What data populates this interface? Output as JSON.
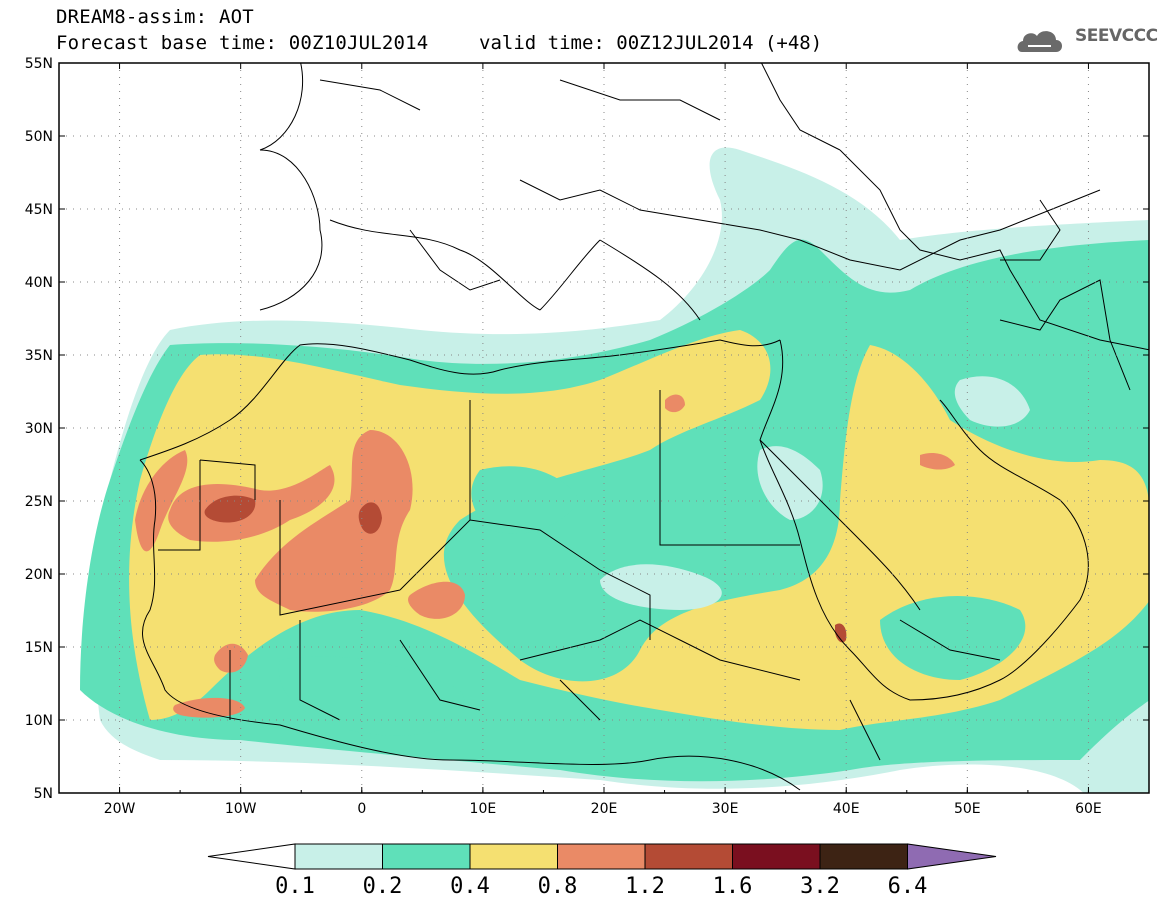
{
  "header": {
    "title_line1": "DREAM8-assim: AOT",
    "title_line2": "Forecast base time: 00Z10JUL2014",
    "valid_time": "valid time: 00Z12JUL2014 (+48)",
    "logo_text": "SEEVCCC",
    "logo_icon": "cloud-logo-icon"
  },
  "map": {
    "lat_labels": [
      "55N",
      "50N",
      "45N",
      "40N",
      "35N",
      "30N",
      "25N",
      "20N",
      "15N",
      "10N",
      "5N"
    ],
    "lon_labels": [
      "20W",
      "10W",
      "0",
      "10E",
      "20E",
      "30E",
      "40E",
      "50E",
      "60E"
    ],
    "lon_range": [
      -25,
      65
    ],
    "lat_range": [
      5,
      55
    ]
  },
  "colorbar": {
    "labels": [
      "0.1",
      "0.2",
      "0.4",
      "0.8",
      "1.2",
      "1.6",
      "3.2",
      "6.4"
    ],
    "colors": [
      "#ffffff",
      "#c8f0e8",
      "#5fe0b9",
      "#f5e071",
      "#ea8a66",
      "#b44b35",
      "#7a0f1f",
      "#3d2314",
      "#8f6bb2"
    ]
  }
}
